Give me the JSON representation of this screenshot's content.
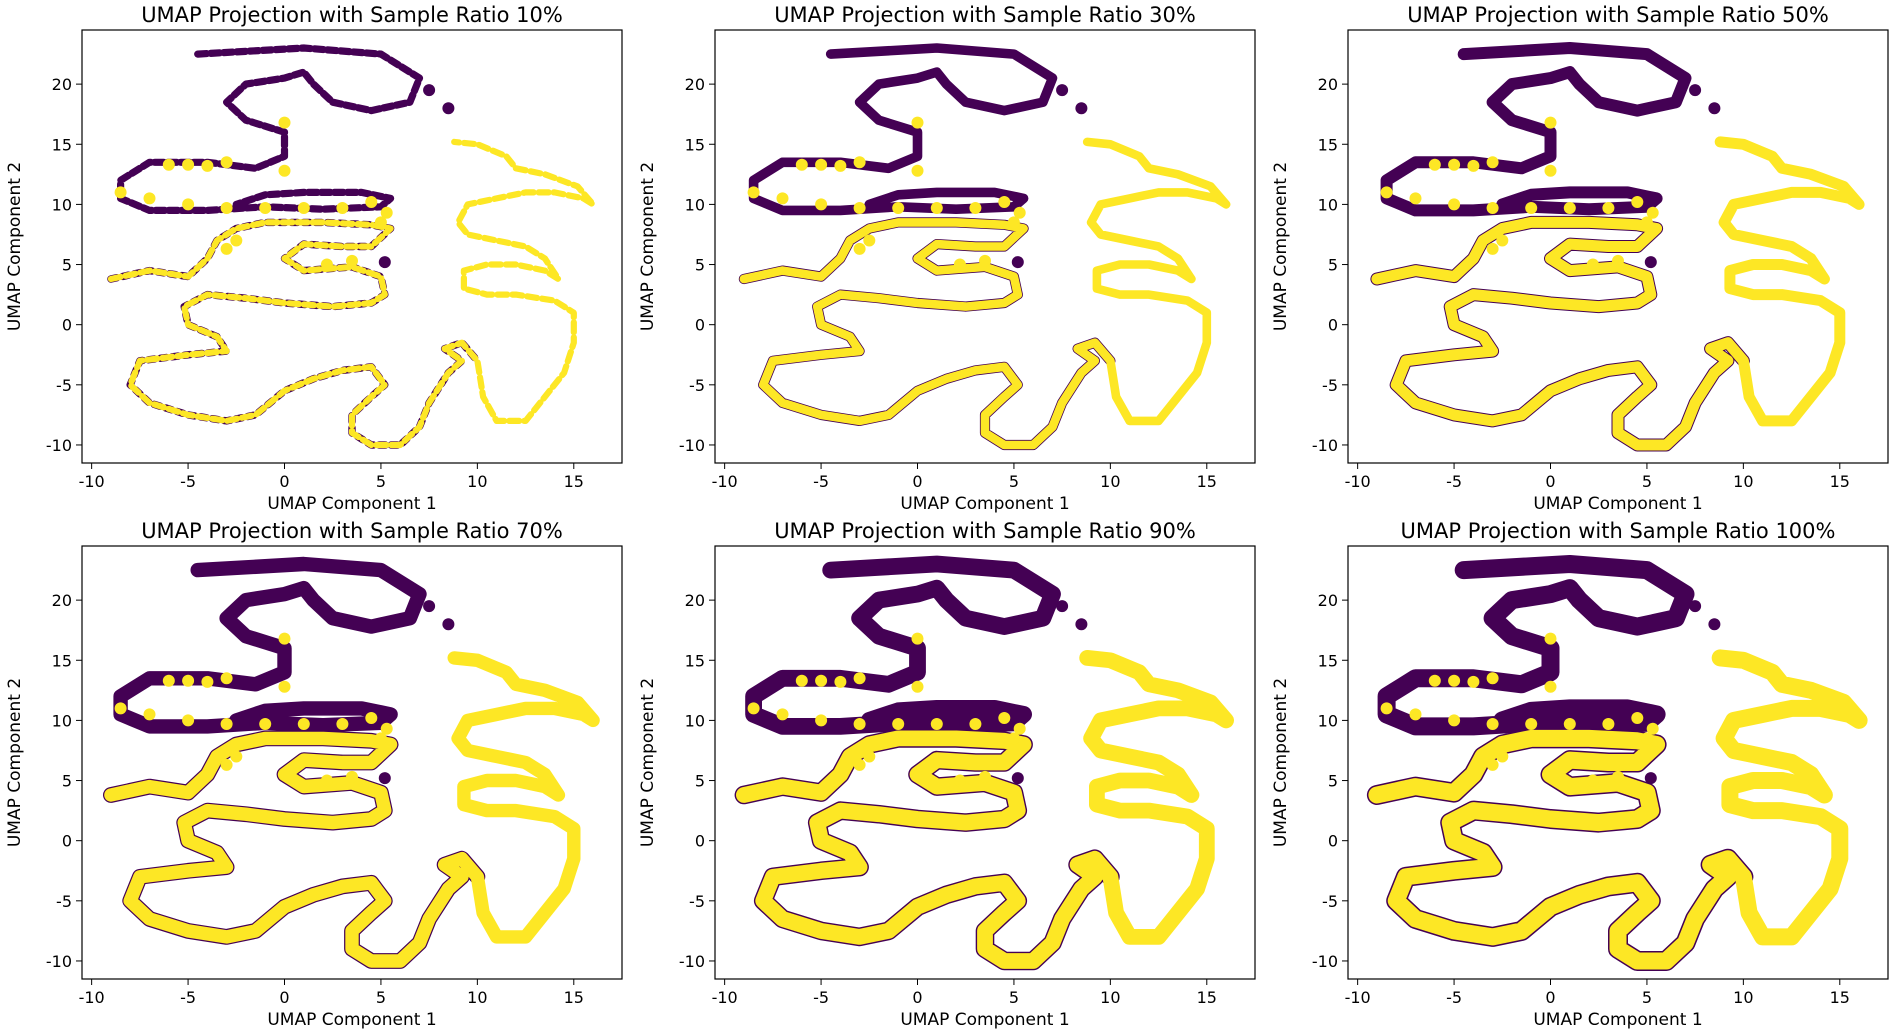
{
  "figure": {
    "xlabel": "UMAP Component 1",
    "ylabel": "UMAP Component 2",
    "colors": {
      "class_0": "#440154",
      "class_1": "#fde725"
    }
  },
  "chart_data": [
    {
      "type": "scatter",
      "title": "UMAP Projection with Sample Ratio 10%",
      "sample_ratio": 10,
      "xlabel": "UMAP Component 1",
      "ylabel": "UMAP Component 2",
      "xlim": [
        -10.5,
        17.5
      ],
      "ylim": [
        -11.5,
        24.5
      ],
      "xticks": [
        -10,
        -5,
        0,
        5,
        10,
        15
      ],
      "yticks": [
        -10,
        -5,
        0,
        5,
        10,
        15,
        20
      ],
      "grid": false,
      "legend": "none"
    },
    {
      "type": "scatter",
      "title": "UMAP Projection with Sample Ratio 30%",
      "sample_ratio": 30,
      "xlabel": "UMAP Component 1",
      "ylabel": "UMAP Component 2",
      "xlim": [
        -10.5,
        17.5
      ],
      "ylim": [
        -11.5,
        24.5
      ],
      "xticks": [
        -10,
        -5,
        0,
        5,
        10,
        15
      ],
      "yticks": [
        -10,
        -5,
        0,
        5,
        10,
        15,
        20
      ],
      "grid": false,
      "legend": "none"
    },
    {
      "type": "scatter",
      "title": "UMAP Projection with Sample Ratio 50%",
      "sample_ratio": 50,
      "xlabel": "UMAP Component 1",
      "ylabel": "UMAP Component 2",
      "xlim": [
        -10.5,
        17.5
      ],
      "ylim": [
        -11.5,
        24.5
      ],
      "xticks": [
        -10,
        -5,
        0,
        5,
        10,
        15
      ],
      "yticks": [
        -10,
        -5,
        0,
        5,
        10,
        15,
        20
      ],
      "grid": false,
      "legend": "none"
    },
    {
      "type": "scatter",
      "title": "UMAP Projection with Sample Ratio 70%",
      "sample_ratio": 70,
      "xlabel": "UMAP Component 1",
      "ylabel": "UMAP Component 2",
      "xlim": [
        -10.5,
        17.5
      ],
      "ylim": [
        -11.5,
        24.5
      ],
      "xticks": [
        -10,
        -5,
        0,
        5,
        10,
        15
      ],
      "yticks": [
        -10,
        -5,
        0,
        5,
        10,
        15,
        20
      ],
      "grid": false,
      "legend": "none"
    },
    {
      "type": "scatter",
      "title": "UMAP Projection with Sample Ratio 90%",
      "sample_ratio": 90,
      "xlabel": "UMAP Component 1",
      "ylabel": "UMAP Component 2",
      "xlim": [
        -10.5,
        17.5
      ],
      "ylim": [
        -11.5,
        24.5
      ],
      "xticks": [
        -10,
        -5,
        0,
        5,
        10,
        15
      ],
      "yticks": [
        -10,
        -5,
        0,
        5,
        10,
        15,
        20
      ],
      "grid": false,
      "legend": "none"
    },
    {
      "type": "scatter",
      "title": "UMAP Projection with Sample Ratio 100%",
      "sample_ratio": 100,
      "xlabel": "UMAP Component 1",
      "ylabel": "UMAP Component 2",
      "xlim": [
        -10.5,
        17.5
      ],
      "ylim": [
        -11.5,
        24.5
      ],
      "xticks": [
        -10,
        -5,
        0,
        5,
        10,
        15
      ],
      "yticks": [
        -10,
        -5,
        0,
        5,
        10,
        15,
        20
      ],
      "grid": false,
      "legend": "none"
    }
  ],
  "manifold": {
    "class_0_path": [
      [
        -4.5,
        22.5
      ],
      [
        1,
        23
      ],
      [
        5,
        22.5
      ],
      [
        7,
        20.5
      ],
      [
        6.5,
        18.5
      ],
      [
        4.5,
        17.8
      ],
      [
        2.5,
        18.5
      ],
      [
        1.5,
        20
      ],
      [
        1,
        21
      ],
      [
        0,
        20.5
      ],
      [
        -2,
        20
      ],
      [
        -3,
        18.5
      ],
      [
        -2,
        17
      ],
      [
        0,
        16
      ],
      [
        0,
        14
      ],
      [
        -1.5,
        13
      ],
      [
        -4,
        13.5
      ],
      [
        -7,
        13.5
      ],
      [
        -8.5,
        12
      ],
      [
        -8.5,
        10.5
      ],
      [
        -7,
        9.5
      ],
      [
        -4,
        9.5
      ],
      [
        -1,
        9.8
      ],
      [
        2,
        9.6
      ],
      [
        5,
        9.8
      ],
      [
        5.5,
        10.5
      ],
      [
        4,
        11
      ],
      [
        1,
        11
      ],
      [
        -1,
        10.8
      ],
      [
        -2.5,
        10
      ]
    ],
    "class_0_tail": [
      [
        7.5,
        19.5
      ],
      [
        8.5,
        18
      ]
    ],
    "class_0_outlier": [
      5.2,
      5.2
    ],
    "class_1_path": [
      [
        -9,
        3.8
      ],
      [
        -7,
        4.5
      ],
      [
        -5,
        4
      ],
      [
        -4,
        5.5
      ],
      [
        -3.5,
        7
      ],
      [
        -2.5,
        8
      ],
      [
        -1,
        8.5
      ],
      [
        2,
        8.5
      ],
      [
        4.5,
        8.3
      ],
      [
        5.5,
        8
      ],
      [
        4.5,
        6.5
      ],
      [
        3,
        6.5
      ],
      [
        1,
        6.7
      ],
      [
        0,
        5.5
      ],
      [
        1,
        4.5
      ],
      [
        3.5,
        4.8
      ],
      [
        5,
        4
      ],
      [
        5.2,
        2.5
      ],
      [
        4.5,
        1.8
      ],
      [
        2.5,
        1.5
      ],
      [
        0,
        1.8
      ],
      [
        -2,
        2.2
      ],
      [
        -4,
        2.5
      ],
      [
        -5.2,
        1.5
      ],
      [
        -5,
        0
      ],
      [
        -3.5,
        -1
      ],
      [
        -3,
        -2.2
      ],
      [
        -5,
        -2.5
      ],
      [
        -7.5,
        -3
      ],
      [
        -8,
        -5
      ],
      [
        -7,
        -6.5
      ],
      [
        -5,
        -7.5
      ],
      [
        -3,
        -8
      ],
      [
        -1.5,
        -7.5
      ],
      [
        0,
        -5.5
      ],
      [
        1.5,
        -4.5
      ],
      [
        3,
        -3.8
      ],
      [
        4.5,
        -3.5
      ],
      [
        5.2,
        -5
      ],
      [
        4.5,
        -6
      ],
      [
        3.5,
        -7.5
      ],
      [
        3.5,
        -9
      ],
      [
        4.5,
        -10
      ],
      [
        6,
        -10
      ],
      [
        7,
        -8.5
      ],
      [
        7.5,
        -6.5
      ],
      [
        8.5,
        -4
      ],
      [
        9.2,
        -3
      ],
      [
        8.3,
        -2
      ],
      [
        9.2,
        -1.5
      ],
      [
        10,
        -3
      ],
      [
        10.3,
        -6
      ],
      [
        11,
        -8
      ],
      [
        12.5,
        -8
      ],
      [
        13.5,
        -6
      ],
      [
        14.5,
        -4
      ],
      [
        15,
        -1.5
      ],
      [
        15,
        1
      ],
      [
        14,
        2
      ],
      [
        12,
        2.5
      ],
      [
        10.5,
        2.5
      ],
      [
        9.3,
        3
      ],
      [
        9.3,
        4.5
      ],
      [
        10.5,
        5
      ],
      [
        12,
        5
      ],
      [
        13.5,
        4.5
      ],
      [
        14.2,
        3.8
      ],
      [
        13.5,
        5.5
      ],
      [
        12.5,
        6.5
      ],
      [
        11,
        7
      ],
      [
        9.5,
        7.5
      ],
      [
        9,
        8.5
      ],
      [
        9.5,
        10
      ],
      [
        11,
        10.5
      ],
      [
        12.5,
        11
      ],
      [
        14,
        11
      ],
      [
        15.5,
        10.5
      ],
      [
        16,
        10
      ],
      [
        15.2,
        11.5
      ],
      [
        13.5,
        12.5
      ],
      [
        12,
        13
      ],
      [
        11.5,
        14
      ],
      [
        10,
        15
      ],
      [
        8.8,
        15.2
      ]
    ],
    "class_1_dots": [
      [
        -8.5,
        11
      ],
      [
        -6,
        13.3
      ],
      [
        -5,
        13.3
      ],
      [
        -4,
        13.2
      ],
      [
        -3,
        13.5
      ],
      [
        0,
        16.8
      ],
      [
        0,
        12.8
      ],
      [
        -7,
        10.5
      ],
      [
        -5,
        10
      ],
      [
        -3,
        9.7
      ],
      [
        -1,
        9.7
      ],
      [
        1,
        9.7
      ],
      [
        3,
        9.7
      ],
      [
        4.5,
        10.2
      ],
      [
        5.3,
        9.3
      ],
      [
        5,
        8.5
      ],
      [
        -2.5,
        7
      ],
      [
        -3,
        6.3
      ],
      [
        2.2,
        5
      ],
      [
        3.5,
        5.3
      ]
    ]
  }
}
